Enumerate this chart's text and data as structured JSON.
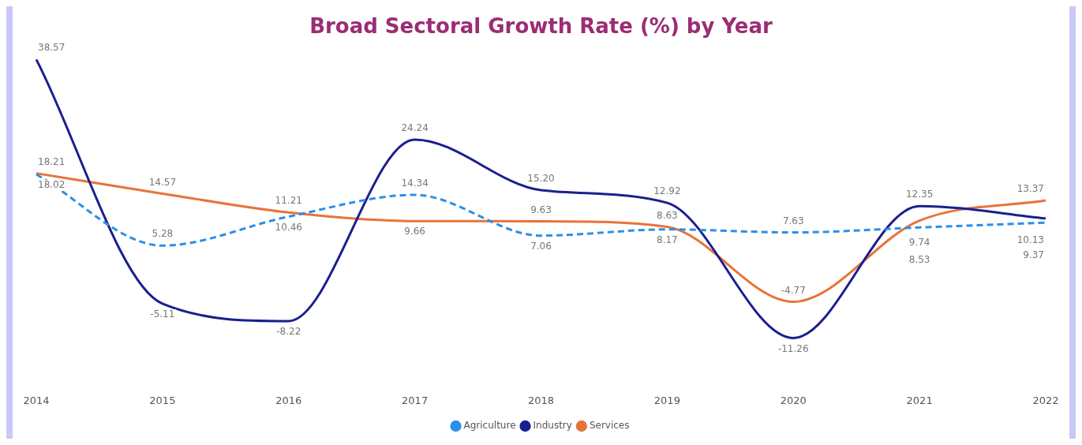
{
  "chart_data": {
    "type": "line",
    "title": "Broad Sectoral Growth Rate (%) by Year",
    "categories": [
      "2014",
      "2015",
      "2016",
      "2017",
      "2018",
      "2019",
      "2020",
      "2021",
      "2022"
    ],
    "series": [
      {
        "name": "Agriculture",
        "color": "#2b8fe8",
        "line_style": "dashed",
        "values": [
          18.02,
          5.28,
          10.46,
          14.34,
          7.06,
          8.17,
          7.63,
          8.53,
          9.37
        ],
        "value_labels": [
          "18.02",
          "5.28",
          "10.46",
          "14.34",
          "7.06",
          "8.17",
          "7.63",
          "8.53",
          "9.37"
        ]
      },
      {
        "name": "Industry",
        "color": "#1b1f8f",
        "line_style": "solid",
        "values": [
          38.57,
          -5.11,
          -8.22,
          24.24,
          15.2,
          12.92,
          -11.26,
          12.35,
          10.13
        ],
        "value_labels": [
          "38.57",
          "-5.11",
          "-8.22",
          "24.24",
          "15.20",
          "12.92",
          "-11.26",
          "12.35",
          "10.13"
        ]
      },
      {
        "name": "Services",
        "color": "#e8733a",
        "line_style": "solid",
        "values": [
          18.21,
          14.57,
          11.21,
          9.66,
          9.63,
          8.63,
          -4.77,
          9.74,
          13.37
        ],
        "value_labels": [
          "18.21",
          "14.57",
          "11.21",
          "9.66",
          "9.63",
          "8.63",
          "-4.77",
          "9.74",
          "13.37"
        ]
      }
    ],
    "legend": "bottom",
    "grid": false,
    "marker": "none",
    "tick_labels": "x"
  }
}
